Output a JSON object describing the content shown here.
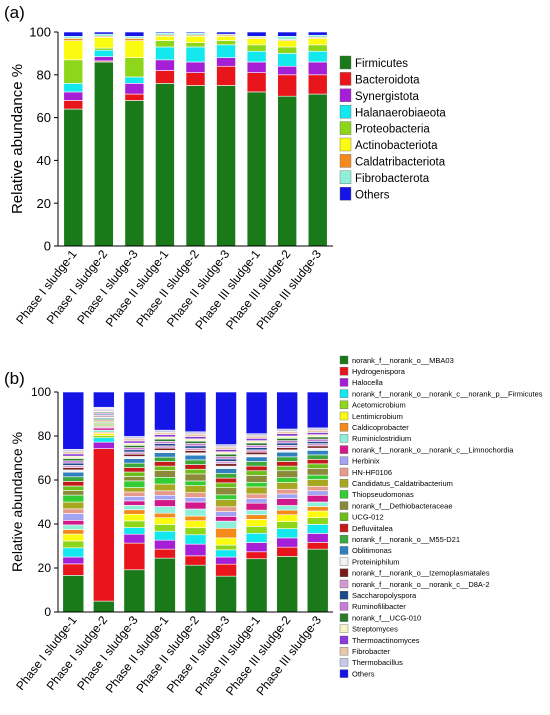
{
  "panels": [
    {
      "label": "(a)",
      "ylabel": "Relative abundance %"
    },
    {
      "label": "(b)",
      "ylabel": "Relative abundance %"
    }
  ],
  "chart_data": [
    {
      "type": "bar",
      "stacked": true,
      "title": "",
      "xlabel": "",
      "ylabel": "Relative abundance %",
      "ylim": [
        0,
        100
      ],
      "yticks": [
        0,
        20,
        40,
        60,
        80,
        100
      ],
      "legend_position": "right",
      "categories": [
        "Phase I sludge-1",
        "Phase I sludge-2",
        "Phase I sludge-3",
        "Phase II sludge-1",
        "Phase II sludge-2",
        "Phase II sludge-3",
        "Phase III sludge-1",
        "Phase III sludge-2",
        "Phase III sludge-3"
      ],
      "series": [
        {
          "name": "Firmicutes",
          "color": "#1a7a1a",
          "values": [
            64,
            86,
            68,
            76,
            75,
            75,
            72,
            70,
            71
          ]
        },
        {
          "name": "Bacteroidota",
          "color": "#e8161b",
          "values": [
            4,
            0.5,
            3,
            6,
            6,
            9,
            9,
            10,
            9
          ]
        },
        {
          "name": "Synergistota",
          "color": "#a51fd6",
          "values": [
            4,
            2,
            5,
            5,
            5,
            4,
            5,
            4,
            6
          ]
        },
        {
          "name": "Halanaerobiaeota",
          "color": "#12e8ed",
          "values": [
            4,
            3,
            3,
            6,
            7,
            6,
            5,
            6,
            5
          ]
        },
        {
          "name": "Proteobacteria",
          "color": "#8ed61a",
          "values": [
            11,
            1,
            9,
            3,
            2,
            2,
            3,
            3,
            3
          ]
        },
        {
          "name": "Actinobacteriota",
          "color": "#fbfb12",
          "values": [
            9,
            5,
            8,
            2,
            3,
            2,
            3,
            3,
            3
          ]
        },
        {
          "name": "Caldatribacteriota",
          "color": "#f58a1c",
          "values": [
            1,
            0.5,
            1,
            0.5,
            0.5,
            0.5,
            0.5,
            0.5,
            0.5
          ]
        },
        {
          "name": "Fibrobacterota",
          "color": "#8ef0d8",
          "values": [
            1,
            1,
            1,
            1,
            1,
            0.5,
            0.5,
            1.5,
            1
          ]
        },
        {
          "name": "Others",
          "color": "#1414e6",
          "values": [
            2,
            1,
            2,
            0.5,
            0.5,
            1,
            2,
            2,
            1.5
          ]
        }
      ]
    },
    {
      "type": "bar",
      "stacked": true,
      "title": "",
      "xlabel": "",
      "ylabel": "Relative abundance %",
      "ylim": [
        0,
        100
      ],
      "yticks": [
        0,
        20,
        40,
        60,
        80,
        100
      ],
      "legend_position": "right",
      "categories": [
        "Phase I sludge-1",
        "Phase I sludge-2",
        "Phase I sludge-3",
        "Phase II sludge-1",
        "Phase II sludge-2",
        "Phase II sludge-3",
        "Phase III sludge-1",
        "Phase III sludge-2",
        "Phase III sludge-3"
      ],
      "series": [
        {
          "name": "norank_f__norank_o__MBA03",
          "color": "#1a7a1a",
          "values": [
            16,
            5,
            19,
            24,
            20,
            15,
            23,
            24,
            28
          ]
        },
        {
          "name": "Hydrogenispora",
          "color": "#e8161b",
          "values": [
            5,
            70,
            12,
            4,
            4,
            5,
            3,
            4,
            3
          ]
        },
        {
          "name": "Halocella",
          "color": "#a51fd6",
          "values": [
            3,
            3,
            4,
            4,
            5,
            3,
            4,
            4,
            4
          ]
        },
        {
          "name": "norank_f__norank_o__norank_c__norank_p__Firmicutes",
          "color": "#12e8ed",
          "values": [
            4,
            2,
            3,
            4,
            4,
            3,
            4,
            4,
            4
          ]
        },
        {
          "name": "Acetomicrobium",
          "color": "#8ed61a",
          "values": [
            3,
            1,
            3,
            3,
            3,
            2,
            3,
            3,
            3
          ]
        },
        {
          "name": "Lentimicrobium",
          "color": "#fbfb12",
          "values": [
            3,
            1,
            3,
            3,
            3,
            3,
            3,
            3,
            3
          ]
        },
        {
          "name": "Caldicoprobacter",
          "color": "#f58a1c",
          "values": [
            2,
            0.5,
            2,
            2,
            2,
            4,
            2,
            2,
            2
          ]
        },
        {
          "name": "Ruminiclostridium",
          "color": "#8ef0d8",
          "values": [
            2,
            1,
            2,
            3,
            3,
            3,
            2,
            2,
            2
          ]
        },
        {
          "name": "norank_f__norank_o__norank_c__Limnochordia",
          "color": "#d1198a",
          "values": [
            2,
            1,
            2,
            3,
            3,
            2,
            3,
            3,
            3
          ]
        },
        {
          "name": "Herbinix",
          "color": "#a3a3f5",
          "values": [
            3,
            0.5,
            2,
            2,
            2,
            2,
            2,
            2,
            2
          ]
        },
        {
          "name": "HN-HF0106",
          "color": "#e89a8a",
          "values": [
            2,
            0.5,
            2,
            2,
            2,
            2,
            2,
            2,
            2
          ]
        },
        {
          "name": "Candidatus_Caldatribacterium",
          "color": "#a8a820",
          "values": [
            3,
            0.5,
            2,
            3,
            3,
            3,
            3,
            3,
            3
          ]
        },
        {
          "name": "Thiopseudomonas",
          "color": "#33cc33",
          "values": [
            3,
            0.5,
            3,
            3,
            2,
            2,
            2,
            2,
            2
          ]
        },
        {
          "name": "norank_f__Dethiobacteraceae",
          "color": "#8a8a3a",
          "values": [
            2,
            0.5,
            2,
            3,
            3,
            3,
            3,
            3,
            3
          ]
        },
        {
          "name": "UCG-012",
          "color": "#6bbf1a",
          "values": [
            2,
            0.5,
            2,
            2,
            2,
            2,
            2,
            2,
            2
          ]
        },
        {
          "name": "Defluviitalea",
          "color": "#c41a1a",
          "values": [
            2,
            0.5,
            2,
            2,
            2,
            2,
            2,
            2,
            2
          ]
        },
        {
          "name": "norank_f__norank_o__M55-D21",
          "color": "#3aa83a",
          "values": [
            2,
            0.5,
            2,
            2,
            2,
            2,
            2,
            2,
            2
          ]
        },
        {
          "name": "Oblitimonas",
          "color": "#2f7fc1",
          "values": [
            2,
            0.5,
            2,
            2,
            2,
            2,
            2,
            2,
            2
          ]
        },
        {
          "name": "Proteiniphilum",
          "color": "#f2f2f2",
          "values": [
            1,
            0.5,
            1,
            1,
            1,
            1,
            1,
            1,
            1
          ]
        },
        {
          "name": "norank_f__norank_o__Izemoplasmatales",
          "color": "#7a1a1a",
          "values": [
            1,
            0.5,
            1,
            1,
            1,
            1,
            1,
            1,
            1
          ]
        },
        {
          "name": "norank_f__norank_o__norank_c__D8A-2",
          "color": "#d19ad1",
          "values": [
            1,
            0.5,
            1,
            1,
            1,
            1,
            1,
            1,
            1
          ]
        },
        {
          "name": "Saccharopolyspora",
          "color": "#1a4a8a",
          "values": [
            1,
            0.5,
            1,
            1,
            1,
            1,
            1,
            1,
            1
          ]
        },
        {
          "name": "Ruminofilibacter",
          "color": "#c87ad6",
          "values": [
            1,
            0.5,
            1,
            1,
            1,
            1,
            1,
            1,
            1
          ]
        },
        {
          "name": "norank_f__UCG-010",
          "color": "#2a7a2a",
          "values": [
            1,
            0.5,
            1,
            1,
            1,
            1,
            1,
            1,
            1
          ]
        },
        {
          "name": "Streptomyces",
          "color": "#f5f5c8",
          "values": [
            1,
            0.5,
            1,
            1,
            1,
            1,
            1,
            1,
            1
          ]
        },
        {
          "name": "Thermoactinomyces",
          "color": "#8a3ad6",
          "values": [
            1,
            0.5,
            1,
            1,
            1,
            1,
            1,
            1,
            1
          ]
        },
        {
          "name": "Fibrobacter",
          "color": "#e8c8a8",
          "values": [
            1,
            0.5,
            1,
            1,
            1,
            1,
            1,
            1,
            1
          ]
        },
        {
          "name": "Thermobacillus",
          "color": "#c8c8e8",
          "values": [
            1,
            0.5,
            1,
            1,
            1,
            1,
            1,
            1,
            1
          ]
        },
        {
          "name": "Others",
          "color": "#1414e6",
          "values": [
            25,
            7,
            20,
            17,
            17,
            22,
            18,
            16,
            16
          ]
        }
      ]
    }
  ]
}
